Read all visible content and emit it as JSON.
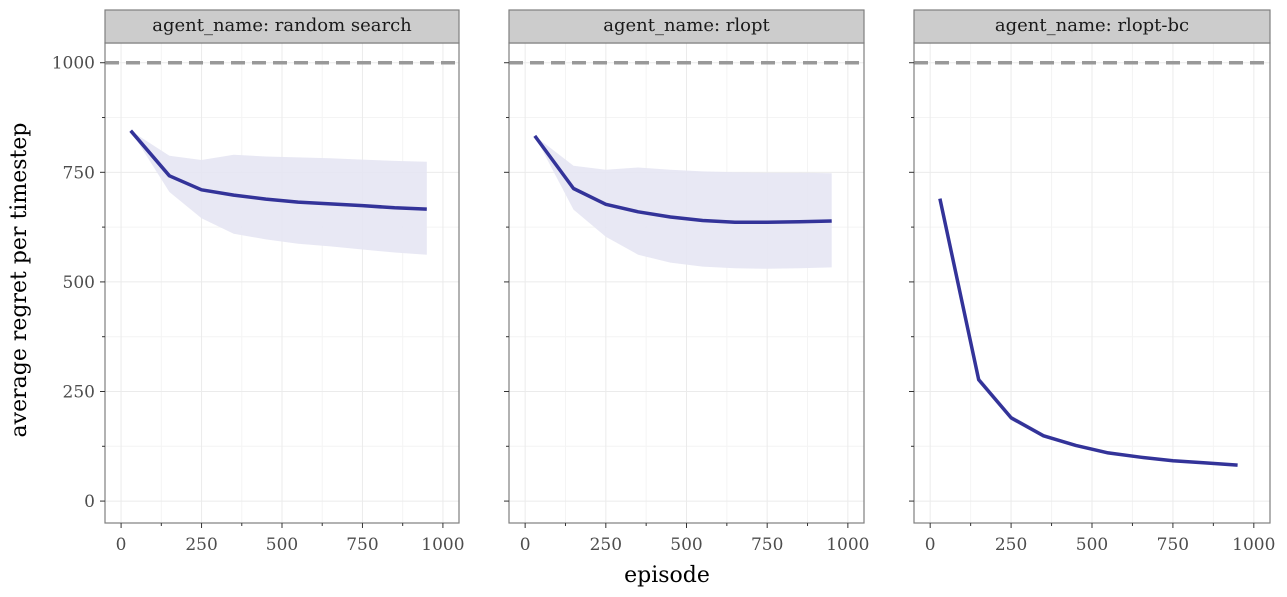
{
  "chart_data": {
    "type": "line",
    "xlabel": "episode",
    "ylabel": "average regret per timestep",
    "xlim": [
      -50,
      1050
    ],
    "ylim": [
      -50,
      1045
    ],
    "x_ticks": [
      0,
      250,
      500,
      750,
      1000
    ],
    "y_ticks": [
      0,
      250,
      500,
      750,
      1000
    ],
    "reference_line": {
      "y": 1000,
      "style": "dashed",
      "color": "#999999"
    },
    "grid": true,
    "colors": {
      "line": "#333399",
      "band": "#e6e6f3",
      "strip": "#cccccc",
      "panel_border": "#7f7f7f",
      "grid_major": "#ebebeb"
    },
    "facets": [
      {
        "label": "agent_name: random search",
        "x": [
          30,
          150,
          250,
          350,
          450,
          550,
          650,
          750,
          850,
          950
        ],
        "y": [
          845,
          742,
          710,
          698,
          689,
          682,
          678,
          674,
          669,
          666
        ],
        "lower": [
          845,
          705,
          645,
          610,
          597,
          587,
          581,
          574,
          567,
          562
        ],
        "upper": [
          845,
          788,
          778,
          790,
          786,
          784,
          782,
          779,
          776,
          774
        ]
      },
      {
        "label": "agent_name: rlopt",
        "x": [
          30,
          150,
          250,
          350,
          450,
          550,
          650,
          750,
          850,
          950
        ],
        "y": [
          833,
          713,
          677,
          660,
          648,
          640,
          636,
          636,
          637,
          639
        ],
        "lower": [
          833,
          665,
          603,
          562,
          544,
          535,
          531,
          530,
          531,
          533
        ],
        "upper": [
          833,
          765,
          756,
          761,
          756,
          752,
          750,
          749,
          749,
          748
        ]
      },
      {
        "label": "agent_name: rlopt-bc",
        "x": [
          30,
          150,
          250,
          350,
          450,
          550,
          650,
          750,
          850,
          950
        ],
        "y": [
          690,
          277,
          190,
          149,
          127,
          110,
          100,
          92,
          87,
          82
        ],
        "lower": [
          690,
          270,
          184,
          145,
          124,
          108,
          98,
          90,
          85,
          80
        ],
        "upper": [
          690,
          285,
          196,
          154,
          130,
          113,
          102,
          94,
          89,
          84
        ]
      }
    ]
  }
}
